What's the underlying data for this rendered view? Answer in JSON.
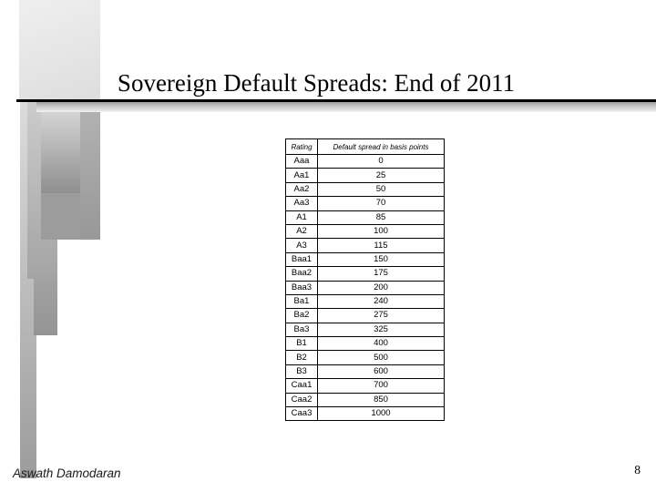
{
  "slide": {
    "title": "Sovereign Default Spreads: End of 2011",
    "footer": {
      "author": "Aswath Damodaran",
      "page_number": "8"
    }
  },
  "table": {
    "headers": [
      "Rating",
      "Default spread in basis points"
    ],
    "rows": [
      [
        "Aaa",
        "0"
      ],
      [
        "Aa1",
        "25"
      ],
      [
        "Aa2",
        "50"
      ],
      [
        "Aa3",
        "70"
      ],
      [
        "A1",
        "85"
      ],
      [
        "A2",
        "100"
      ],
      [
        "A3",
        "115"
      ],
      [
        "Baa1",
        "150"
      ],
      [
        "Baa2",
        "175"
      ],
      [
        "Baa3",
        "200"
      ],
      [
        "Ba1",
        "240"
      ],
      [
        "Ba2",
        "275"
      ],
      [
        "Ba3",
        "325"
      ],
      [
        "B1",
        "400"
      ],
      [
        "B2",
        "500"
      ],
      [
        "B3",
        "600"
      ],
      [
        "Caa1",
        "700"
      ],
      [
        "Caa2",
        "850"
      ],
      [
        "Caa3",
        "1000"
      ]
    ]
  },
  "colors": {
    "background": "#ffffff",
    "title_text": "#000000",
    "rule": "#000000",
    "decor_gray": "#9c9c9c",
    "table_border": "#000000"
  }
}
